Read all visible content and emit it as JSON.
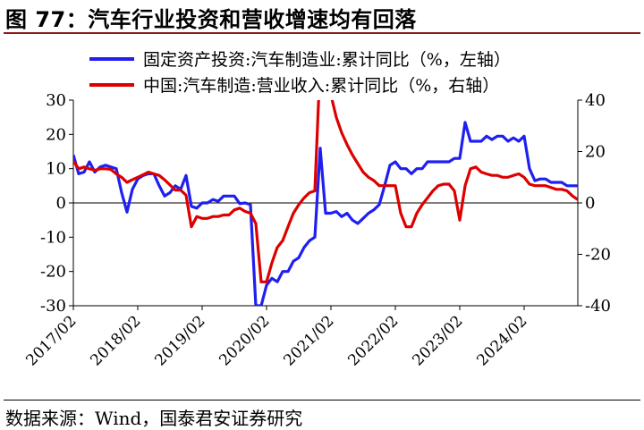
{
  "title": "图 77：汽车行业投资和营收增速均有回落",
  "source": "数据来源：Wind，国泰君安证券研究",
  "chart_data": {
    "type": "line",
    "legend_position": "top",
    "grid": false,
    "y_left": {
      "range": [
        -30,
        30
      ],
      "ticks": [
        "30",
        "20",
        "10",
        "0",
        "-10",
        "-20",
        "-30"
      ]
    },
    "y_right": {
      "range": [
        -40,
        40
      ],
      "ticks": [
        "40",
        "20",
        "0",
        "-20",
        "-40"
      ]
    },
    "x_ticks": [
      "2017/02",
      "2018/02",
      "2019/02",
      "2020/02",
      "2021/02",
      "2022/02",
      "2023/02",
      "2024/02"
    ],
    "x_range": [
      0,
      94
    ],
    "series": [
      {
        "name": "固定资产投资:汽车制造业:累计同比（%，左轴）",
        "color": "#1F1FF0",
        "axis": "left",
        "x": [
          0,
          1,
          2,
          3,
          4,
          5,
          6,
          7,
          8,
          9,
          10,
          11,
          12,
          13,
          14,
          15,
          16,
          17,
          18,
          19,
          20,
          21,
          22,
          23,
          24,
          25,
          26,
          27,
          28,
          29,
          30,
          31,
          32,
          33,
          34,
          35,
          36,
          37,
          38,
          39,
          40,
          41,
          42,
          43,
          44,
          45,
          46,
          47,
          48,
          49,
          50,
          51,
          52,
          53,
          54,
          55,
          56,
          57,
          58,
          59,
          60,
          61,
          62,
          63,
          64,
          65,
          66,
          67,
          68,
          69,
          70,
          71,
          72,
          73,
          74,
          75,
          76,
          77,
          78,
          79,
          80,
          81,
          82,
          83,
          84,
          85,
          86,
          87,
          88,
          89,
          90,
          91,
          92,
          93,
          94
        ],
        "values": [
          14,
          8.5,
          9,
          12,
          9,
          10.5,
          11,
          10.5,
          10,
          3,
          -2.7,
          4,
          7,
          8,
          8.5,
          8.5,
          5,
          2,
          3,
          5,
          4,
          8,
          -1,
          -1.5,
          0,
          0,
          1,
          0.5,
          2,
          2,
          2,
          -0.2,
          0,
          -0.5,
          -30,
          -30,
          -24,
          -22,
          -23,
          -20,
          -20,
          -17,
          -16,
          -13,
          -11,
          -10,
          16,
          -3,
          -3,
          -2.5,
          -4,
          -3,
          -5,
          -6,
          -4.5,
          -3,
          -2,
          -0.5,
          5,
          11,
          12,
          10,
          10,
          8.5,
          10,
          10,
          12,
          12,
          12,
          12,
          12,
          13,
          13,
          23.5,
          18,
          18,
          18,
          19.5,
          18.5,
          19.5,
          19.5,
          18,
          19,
          18,
          19.5,
          10,
          6.5,
          7,
          7,
          6,
          6,
          6,
          5,
          5,
          5
        ]
      },
      {
        "name": "中国:汽车制造:营业收入:累计同比（%，右轴）",
        "color": "#DD0000",
        "axis": "right",
        "x": [
          0,
          1,
          2,
          3,
          4,
          5,
          6,
          7,
          8,
          9,
          10,
          11,
          12,
          13,
          14,
          15,
          16,
          17,
          18,
          19,
          20,
          21,
          22,
          23,
          24,
          25,
          26,
          27,
          28,
          29,
          30,
          31,
          32,
          33,
          34,
          35,
          36,
          37,
          38,
          39,
          40,
          41,
          42,
          43,
          44,
          45,
          46,
          47,
          48,
          49,
          50,
          51,
          52,
          53,
          54,
          55,
          56,
          57,
          58,
          59,
          60,
          61,
          62,
          63,
          64,
          65,
          66,
          67,
          68,
          69,
          70,
          71,
          72,
          73,
          74,
          75,
          76,
          77,
          78,
          79,
          80,
          81,
          82,
          83,
          84,
          85,
          86,
          87,
          88,
          89,
          90,
          91,
          92,
          93,
          94
        ],
        "values": [
          16.3,
          13.3,
          14,
          13.3,
          12.7,
          13.3,
          13.3,
          13,
          11.3,
          10,
          8,
          9,
          10,
          11,
          12,
          11.3,
          10.7,
          9,
          7,
          5,
          5,
          3,
          -9.3,
          -5.3,
          -6,
          -6,
          -5.3,
          -5.3,
          -4.7,
          -4.7,
          -2.7,
          -2,
          -3.3,
          -4,
          -8,
          -30.7,
          -30.7,
          -23.3,
          -17.3,
          -14.7,
          -9.3,
          -4,
          -0.7,
          2,
          4,
          4.7,
          55,
          55,
          42,
          33.3,
          27.3,
          22.7,
          18.7,
          15.3,
          12,
          10,
          8.7,
          6.7,
          6.7,
          6.7,
          6.7,
          -4,
          -9.3,
          -9.3,
          -4,
          -0.7,
          2,
          4.7,
          6.7,
          7.3,
          7.3,
          4.7,
          -6.7,
          6.7,
          13.3,
          14,
          12,
          11.3,
          10.7,
          10.7,
          10,
          10,
          10.7,
          11.3,
          10,
          7.3,
          6.7,
          6.7,
          6.7,
          6,
          5.3,
          5.3,
          4.7,
          2.7,
          1.3
        ]
      }
    ]
  }
}
